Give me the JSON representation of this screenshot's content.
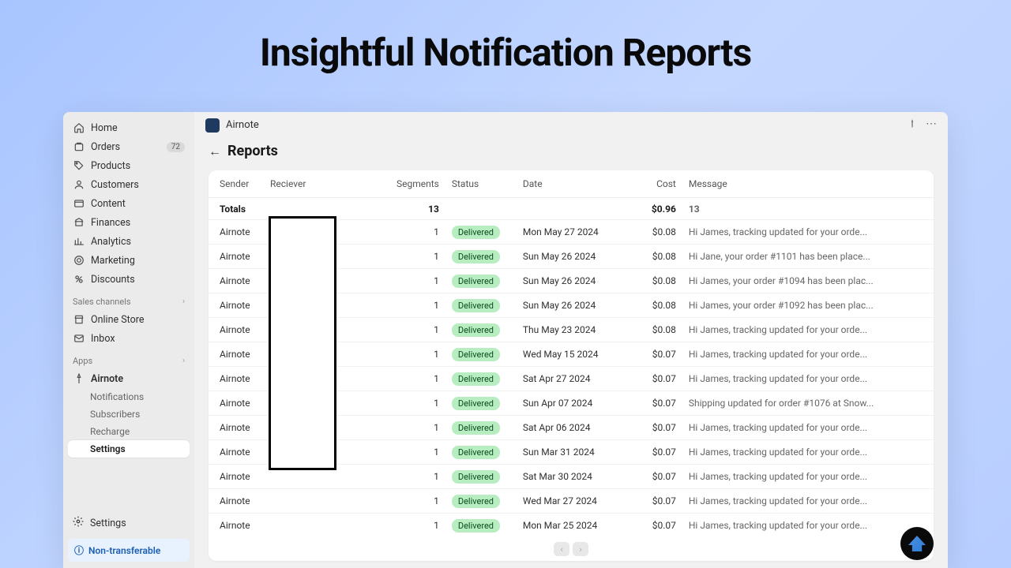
{
  "hero": {
    "title": "Insightful Notification Reports"
  },
  "sidebar": {
    "nav": [
      {
        "label": "Home",
        "icon": "home"
      },
      {
        "label": "Orders",
        "icon": "orders",
        "badge": "72"
      },
      {
        "label": "Products",
        "icon": "tag"
      },
      {
        "label": "Customers",
        "icon": "user"
      },
      {
        "label": "Content",
        "icon": "content"
      },
      {
        "label": "Finances",
        "icon": "finances"
      },
      {
        "label": "Analytics",
        "icon": "analytics"
      },
      {
        "label": "Marketing",
        "icon": "marketing"
      },
      {
        "label": "Discounts",
        "icon": "discount"
      }
    ],
    "sales_header": "Sales channels",
    "sales": [
      {
        "label": "Online Store",
        "icon": "store"
      },
      {
        "label": "Inbox",
        "icon": "inbox"
      }
    ],
    "apps_header": "Apps",
    "app_name": "Airnote",
    "app_subnav": [
      {
        "label": "Notifications"
      },
      {
        "label": "Subscribers"
      },
      {
        "label": "Recharge"
      },
      {
        "label": "Settings",
        "active": true
      }
    ],
    "settings_label": "Settings",
    "nontransfer_label": "Non-transferable"
  },
  "header": {
    "app_name": "Airnote"
  },
  "page": {
    "title": "Reports"
  },
  "table": {
    "columns": {
      "sender": "Sender",
      "receiver": "Reciever",
      "segments": "Segments",
      "status": "Status",
      "date": "Date",
      "cost": "Cost",
      "message": "Message"
    },
    "totals": {
      "label": "Totals",
      "segments": "13",
      "cost": "$0.96",
      "message": "13"
    },
    "rows": [
      {
        "sender": "Airnote",
        "segments": "1",
        "status": "Delivered",
        "date": "Mon May 27 2024",
        "cost": "$0.08",
        "message": "Hi James, tracking updated for your orde..."
      },
      {
        "sender": "Airnote",
        "segments": "1",
        "status": "Delivered",
        "date": "Sun May 26 2024",
        "cost": "$0.08",
        "message": "Hi Jane, your order #1101 has been place..."
      },
      {
        "sender": "Airnote",
        "segments": "1",
        "status": "Delivered",
        "date": "Sun May 26 2024",
        "cost": "$0.08",
        "message": "Hi James, your order #1094 has been plac..."
      },
      {
        "sender": "Airnote",
        "segments": "1",
        "status": "Delivered",
        "date": "Sun May 26 2024",
        "cost": "$0.08",
        "message": "Hi James, your order #1092 has been plac..."
      },
      {
        "sender": "Airnote",
        "segments": "1",
        "status": "Delivered",
        "date": "Thu May 23 2024",
        "cost": "$0.08",
        "message": "Hi James, tracking updated for your orde..."
      },
      {
        "sender": "Airnote",
        "segments": "1",
        "status": "Delivered",
        "date": "Wed May 15 2024",
        "cost": "$0.07",
        "message": "Hi James, tracking updated for your orde..."
      },
      {
        "sender": "Airnote",
        "segments": "1",
        "status": "Delivered",
        "date": "Sat Apr 27 2024",
        "cost": "$0.07",
        "message": "Hi James, tracking updated for your orde..."
      },
      {
        "sender": "Airnote",
        "segments": "1",
        "status": "Delivered",
        "date": "Sun Apr 07 2024",
        "cost": "$0.07",
        "message": "Shipping updated for order #1076 at Snow..."
      },
      {
        "sender": "Airnote",
        "segments": "1",
        "status": "Delivered",
        "date": "Sat Apr 06 2024",
        "cost": "$0.07",
        "message": "Hi James, tracking updated for your orde..."
      },
      {
        "sender": "Airnote",
        "segments": "1",
        "status": "Delivered",
        "date": "Sun Mar 31 2024",
        "cost": "$0.07",
        "message": "Hi James, tracking updated for your orde..."
      },
      {
        "sender": "Airnote",
        "segments": "1",
        "status": "Delivered",
        "date": "Sat Mar 30 2024",
        "cost": "$0.07",
        "message": "Hi James, tracking updated for your orde..."
      },
      {
        "sender": "Airnote",
        "segments": "1",
        "status": "Delivered",
        "date": "Wed Mar 27 2024",
        "cost": "$0.07",
        "message": "Hi James, tracking updated for your orde..."
      },
      {
        "sender": "Airnote",
        "segments": "1",
        "status": "Delivered",
        "date": "Mon Mar 25 2024",
        "cost": "$0.07",
        "message": "Hi James, tracking updated for your orde..."
      }
    ]
  },
  "colors": {
    "bg_gradient_start": "#a8c5ff",
    "bg_gradient_end": "#c4d7ff",
    "sidebar_bg": "#ebebeb",
    "main_bg": "#f1f1f1",
    "status_pill_bg": "#b8edc2",
    "status_pill_text": "#0a4d1f",
    "nontransfer_bg": "#e8f2ff",
    "nontransfer_text": "#1a5fb4"
  }
}
